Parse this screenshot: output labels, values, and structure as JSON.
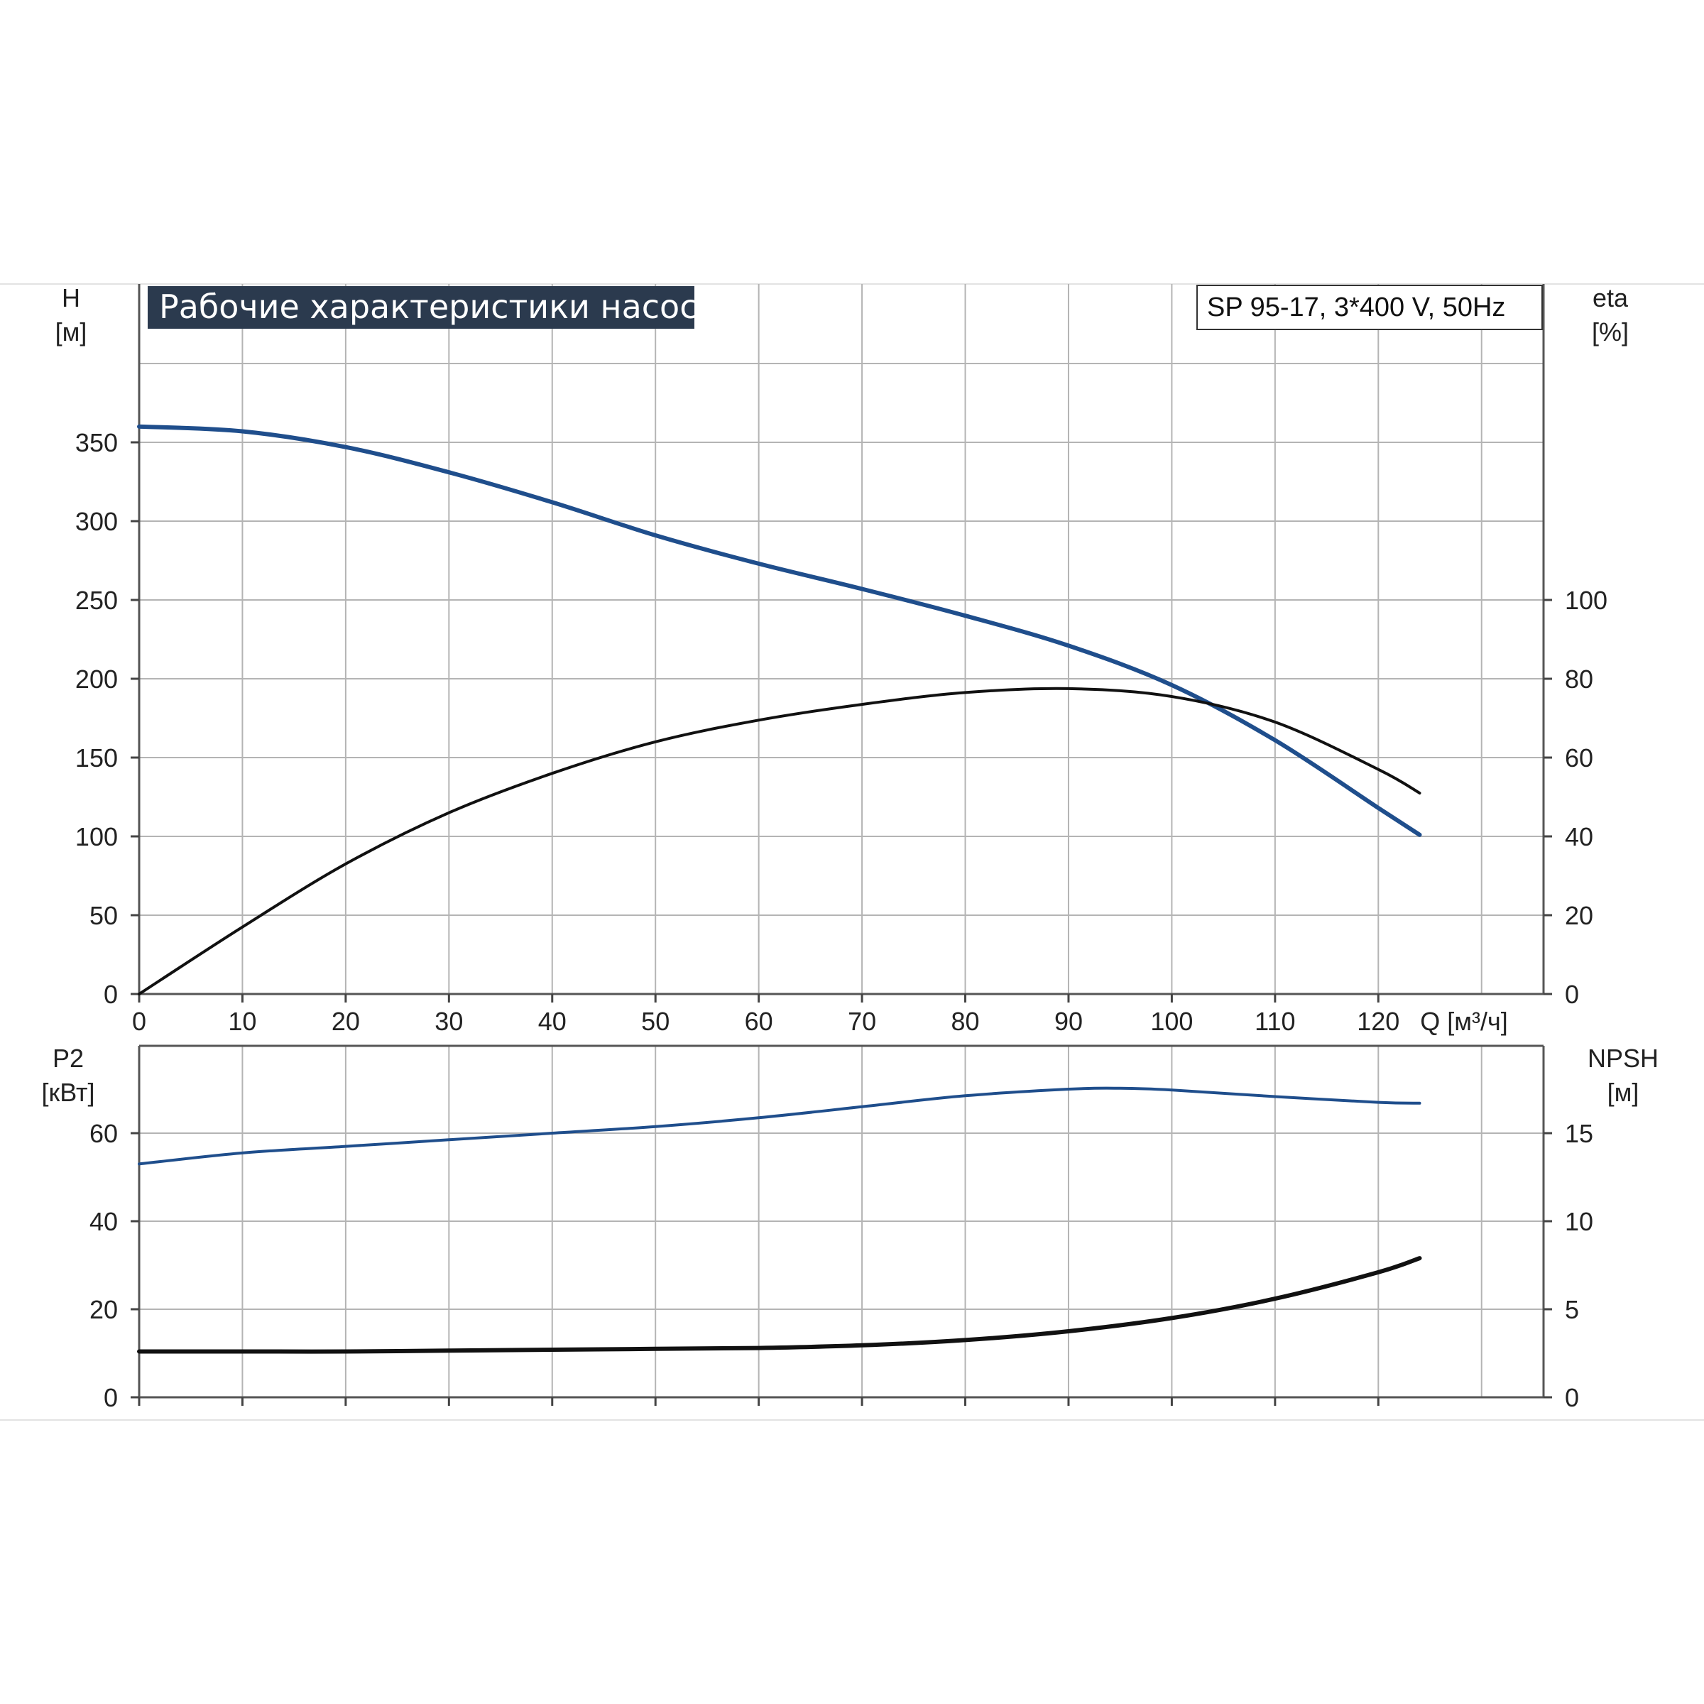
{
  "chart_data": [
    {
      "type": "line",
      "title": "Рабочие характеристики насоса",
      "model": "SP 95-17, 3*400 V, 50Hz",
      "xlabel": "Q [м³/ч]",
      "xlim": [
        0,
        136
      ],
      "xticks": [
        0,
        10,
        20,
        30,
        40,
        50,
        60,
        70,
        80,
        90,
        100,
        110,
        120
      ],
      "left_axis": {
        "label_line1": "H",
        "label_line2": "[м]",
        "ylim": [
          0,
          400
        ],
        "ticks": [
          0,
          50,
          100,
          150,
          200,
          250,
          300,
          350
        ]
      },
      "right_axis": {
        "label_line1": "eta",
        "label_line2": "[%]",
        "ylim": [
          0,
          100
        ],
        "ticks": [
          0,
          20,
          40,
          60,
          80,
          100
        ]
      },
      "grid": true,
      "series": [
        {
          "axis": "left",
          "color": "#1f4e8c",
          "x": [
            0,
            10,
            20,
            30,
            40,
            50,
            60,
            70,
            80,
            90,
            100,
            110,
            120,
            124
          ],
          "y": [
            360,
            357,
            347,
            331,
            312,
            291,
            273,
            257,
            240,
            221,
            196,
            161,
            118,
            101
          ]
        },
        {
          "axis": "right",
          "color": "#111111",
          "x": [
            0,
            10,
            20,
            30,
            40,
            50,
            60,
            70,
            80,
            90,
            100,
            110,
            120,
            124
          ],
          "y": [
            0,
            17,
            33,
            46,
            56,
            64,
            69.5,
            73.5,
            76.5,
            77.5,
            75.5,
            69,
            57,
            51
          ]
        }
      ]
    },
    {
      "type": "line",
      "xlim": [
        0,
        136
      ],
      "xticks": [
        0,
        10,
        20,
        30,
        40,
        50,
        60,
        70,
        80,
        90,
        100,
        110,
        120
      ],
      "left_axis": {
        "label_line1": "P2",
        "label_line2": "[кВт]",
        "ylim": [
          0,
          80
        ],
        "ticks": [
          0,
          20,
          40,
          60
        ]
      },
      "right_axis": {
        "label_line1": "NPSH",
        "label_line2": "[м]",
        "ylim": [
          0,
          20
        ],
        "ticks": [
          0,
          5,
          10,
          15
        ]
      },
      "grid": true,
      "series": [
        {
          "axis": "left",
          "color": "#1f4e8c",
          "x": [
            0,
            10,
            20,
            30,
            40,
            50,
            60,
            70,
            80,
            90,
            95,
            100,
            110,
            120,
            124
          ],
          "y": [
            53,
            55.5,
            57,
            58.5,
            60,
            61.5,
            63.5,
            66,
            68.5,
            70,
            70.2,
            69.8,
            68.3,
            67,
            66.8
          ]
        },
        {
          "axis": "right",
          "color": "#111111",
          "x": [
            0,
            10,
            20,
            30,
            40,
            50,
            60,
            70,
            80,
            90,
            100,
            110,
            120,
            124
          ],
          "y": [
            2.6,
            2.6,
            2.6,
            2.65,
            2.7,
            2.75,
            2.8,
            2.95,
            3.25,
            3.75,
            4.5,
            5.6,
            7.1,
            7.9
          ]
        }
      ]
    }
  ]
}
